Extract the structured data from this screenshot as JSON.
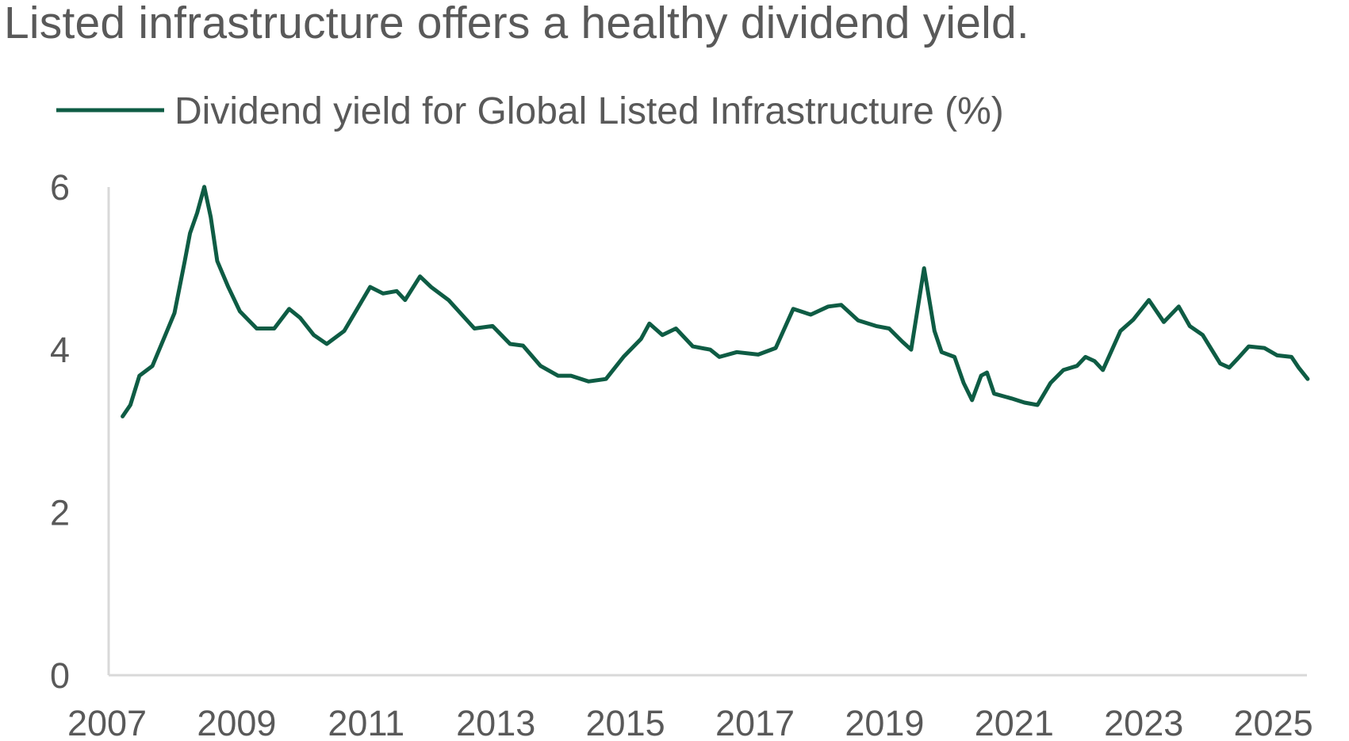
{
  "chart_data": {
    "type": "line",
    "title": "Listed infrastructure offers a healthy dividend yield.",
    "xlabel": "",
    "ylabel": "",
    "xlim": [
      2007,
      2025.6
    ],
    "ylim": [
      0,
      6
    ],
    "x_ticks": [
      "2007",
      "2009",
      "2011",
      "2013",
      "2015",
      "2017",
      "2019",
      "2021",
      "2023",
      "2025"
    ],
    "y_ticks": [
      "0",
      "2",
      "4",
      "6"
    ],
    "grid": false,
    "legend": "top-left",
    "colors": {
      "line": "#0e5c44",
      "axis": "#d9d9d9",
      "text": "#595959"
    },
    "series": [
      {
        "name": "Dividend yield for Global Listed Infrastructure (%)",
        "x": [
          2007.24,
          2007.36,
          2007.5,
          2007.7,
          2007.9,
          2008.04,
          2008.2,
          2008.28,
          2008.39,
          2008.5,
          2008.6,
          2008.7,
          2008.87,
          2009.05,
          2009.31,
          2009.58,
          2009.81,
          2009.98,
          2010.19,
          2010.39,
          2010.66,
          2010.86,
          2011.06,
          2011.26,
          2011.47,
          2011.6,
          2011.83,
          2012.0,
          2012.27,
          2012.67,
          2012.95,
          2013.22,
          2013.42,
          2013.69,
          2013.96,
          2014.16,
          2014.43,
          2014.7,
          2014.97,
          2015.24,
          2015.37,
          2015.57,
          2015.78,
          2016.04,
          2016.31,
          2016.45,
          2016.72,
          2017.05,
          2017.32,
          2017.59,
          2017.86,
          2018.13,
          2018.33,
          2018.59,
          2018.87,
          2019.07,
          2019.27,
          2019.41,
          2019.61,
          2019.77,
          2019.88,
          2020.08,
          2020.22,
          2020.35,
          2020.49,
          2020.58,
          2020.69,
          2020.96,
          2021.16,
          2021.36,
          2021.56,
          2021.76,
          2021.97,
          2022.1,
          2022.24,
          2022.37,
          2022.64,
          2022.84,
          2023.08,
          2023.31,
          2023.54,
          2023.71,
          2023.91,
          2024.18,
          2024.32,
          2024.45,
          2024.62,
          2024.86,
          2025.06,
          2025.28,
          2025.39,
          2025.53
        ],
        "values": [
          3.18,
          3.32,
          3.68,
          3.8,
          4.18,
          4.45,
          5.09,
          5.43,
          5.68,
          6.0,
          5.63,
          5.09,
          4.77,
          4.47,
          4.26,
          4.26,
          4.5,
          4.39,
          4.18,
          4.07,
          4.23,
          4.5,
          4.77,
          4.69,
          4.72,
          4.61,
          4.9,
          4.77,
          4.61,
          4.26,
          4.29,
          4.07,
          4.05,
          3.8,
          3.68,
          3.68,
          3.61,
          3.64,
          3.91,
          4.13,
          4.32,
          4.18,
          4.26,
          4.04,
          4.0,
          3.91,
          3.97,
          3.94,
          4.02,
          4.5,
          4.43,
          4.53,
          4.55,
          4.36,
          4.29,
          4.26,
          4.1,
          4.0,
          5.0,
          4.23,
          3.97,
          3.91,
          3.59,
          3.38,
          3.68,
          3.72,
          3.46,
          3.4,
          3.35,
          3.32,
          3.59,
          3.75,
          3.8,
          3.91,
          3.86,
          3.75,
          4.23,
          4.37,
          4.61,
          4.34,
          4.53,
          4.29,
          4.18,
          3.83,
          3.78,
          3.89,
          4.04,
          4.02,
          3.93,
          3.91,
          3.78,
          3.64
        ]
      }
    ]
  }
}
